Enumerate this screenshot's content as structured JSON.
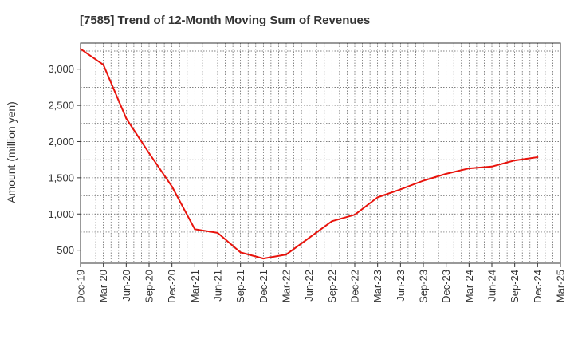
{
  "chart_data": {
    "type": "line",
    "title": "[7585]  Trend of 12-Month Moving Sum of Revenues",
    "xlabel": "",
    "ylabel": "Amount (million yen)",
    "x": [
      "Dec-19",
      "Mar-20",
      "Jun-20",
      "Sep-20",
      "Dec-20",
      "Mar-21",
      "Jun-21",
      "Sep-21",
      "Dec-21",
      "Mar-22",
      "Jun-22",
      "Sep-22",
      "Dec-22",
      "Mar-23",
      "Jun-23",
      "Sep-23",
      "Dec-23",
      "Mar-24",
      "Jun-24",
      "Sep-24",
      "Dec-24",
      "Mar-25"
    ],
    "series": [
      {
        "color": "#e8130c",
        "values": [
          3280,
          3060,
          2320,
          1840,
          1380,
          790,
          740,
          470,
          385,
          440,
          670,
          900,
          990,
          1230,
          1340,
          1460,
          1555,
          1630,
          1655,
          1740,
          1785,
          null
        ]
      }
    ],
    "yticks": [
      500,
      1000,
      1500,
      2000,
      2500,
      3000
    ],
    "ytick_labels": [
      "500",
      "1,000",
      "1,500",
      "2,000",
      "2,500",
      "3,000"
    ],
    "ylim": [
      320,
      3360
    ],
    "grid": true,
    "legend": "none"
  }
}
